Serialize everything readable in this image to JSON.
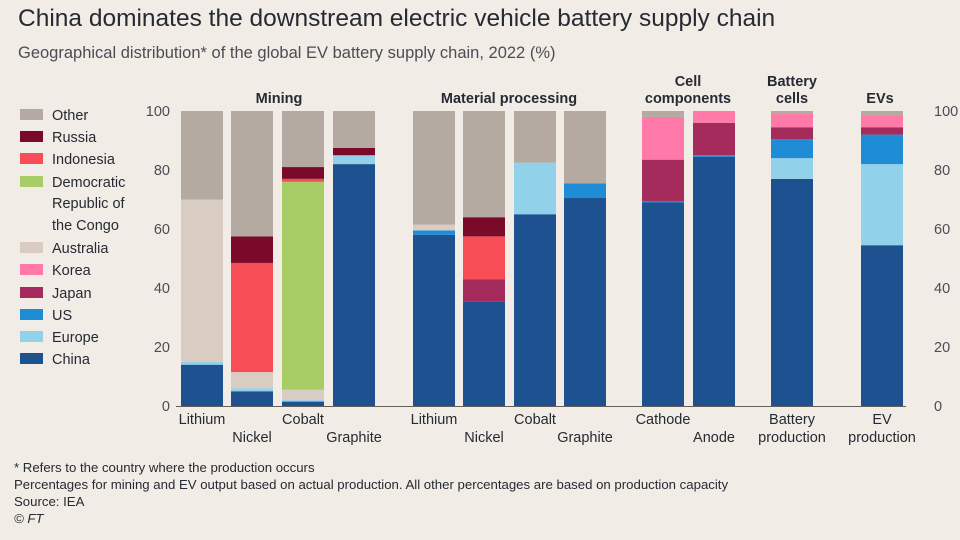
{
  "title": "China dominates the downstream electric vehicle battery supply chain",
  "subtitle": "Geographical distribution* of the global EV battery supply chain, 2022 (%)",
  "footnotes": [
    "* Refers to the country where the production occurs",
    "Percentages for mining and EV output based on actual production. All other percentages are based on production capacity",
    "Source: IEA"
  ],
  "credit": "© FT",
  "chart_data": {
    "type": "bar",
    "stacked": true,
    "ylim": [
      0,
      100
    ],
    "yticks": [
      0,
      20,
      40,
      60,
      80,
      100
    ],
    "grid": false,
    "legend_position": "left",
    "colors": {
      "China": "#1d5190",
      "Europe": "#91d1ea",
      "US": "#1f8dd6",
      "Japan": "#a52b5c",
      "Korea": "#ff7aa9",
      "Australia": "#d9ccc3",
      "Democratic Republic of the Congo": "#a8cc66",
      "Indonesia": "#f64d57",
      "Russia": "#7b0a2a",
      "Other": "#b4aaa1"
    },
    "legend": [
      {
        "key": "Other",
        "lines": [
          "Other"
        ]
      },
      {
        "key": "Russia",
        "lines": [
          "Russia"
        ]
      },
      {
        "key": "Indonesia",
        "lines": [
          "Indonesia"
        ]
      },
      {
        "key": "Democratic Republic of the Congo",
        "lines": [
          "Democratic",
          "Republic of",
          "the Congo"
        ]
      },
      {
        "key": "Australia",
        "lines": [
          "Australia"
        ]
      },
      {
        "key": "Korea",
        "lines": [
          "Korea"
        ]
      },
      {
        "key": "Japan",
        "lines": [
          "Japan"
        ]
      },
      {
        "key": "US",
        "lines": [
          "US"
        ]
      },
      {
        "key": "Europe",
        "lines": [
          "Europe"
        ]
      },
      {
        "key": "China",
        "lines": [
          "China"
        ]
      }
    ],
    "groups": [
      {
        "title": [
          "Mining"
        ],
        "categories": [
          {
            "label": [
              "Lithium"
            ],
            "segments": [
              [
                "China",
                14
              ],
              [
                "Europe",
                1
              ],
              [
                "Australia",
                55
              ],
              [
                "Other",
                30
              ]
            ]
          },
          {
            "label": [
              "Nickel"
            ],
            "segments": [
              [
                "China",
                5
              ],
              [
                "Europe",
                1
              ],
              [
                "Australia",
                5.5
              ],
              [
                "Indonesia",
                37
              ],
              [
                "Russia",
                9
              ],
              [
                "Other",
                42.5
              ]
            ]
          },
          {
            "label": [
              "Cobalt"
            ],
            "segments": [
              [
                "China",
                1.5
              ],
              [
                "Europe",
                0.5
              ],
              [
                "Australia",
                3.5
              ],
              [
                "Democratic Republic of the Congo",
                70.5
              ],
              [
                "Indonesia",
                1
              ],
              [
                "Russia",
                4
              ],
              [
                "Other",
                19
              ]
            ]
          },
          {
            "label": [
              "Graphite"
            ],
            "segments": [
              [
                "China",
                82
              ],
              [
                "Europe",
                3
              ],
              [
                "Russia",
                2.5
              ],
              [
                "Other",
                12.5
              ]
            ]
          }
        ]
      },
      {
        "title": [
          "Material processing"
        ],
        "categories": [
          {
            "label": [
              "Lithium"
            ],
            "segments": [
              [
                "China",
                58
              ],
              [
                "US",
                1.5
              ],
              [
                "Australia",
                2
              ],
              [
                "Other",
                38.5
              ]
            ]
          },
          {
            "label": [
              "Nickel"
            ],
            "segments": [
              [
                "China",
                35.5
              ],
              [
                "Japan",
                7.5
              ],
              [
                "Indonesia",
                14.5
              ],
              [
                "Russia",
                6.5
              ],
              [
                "Other",
                36
              ]
            ]
          },
          {
            "label": [
              "Cobalt"
            ],
            "segments": [
              [
                "China",
                65
              ],
              [
                "Europe",
                17.5
              ],
              [
                "Other",
                17.5
              ]
            ]
          },
          {
            "label": [
              "Graphite"
            ],
            "segments": [
              [
                "China",
                70.5
              ],
              [
                "US",
                5
              ],
              [
                "Other",
                24.5
              ]
            ]
          }
        ]
      },
      {
        "title": [
          "Cell",
          "components"
        ],
        "categories": [
          {
            "label": [
              "Cathode"
            ],
            "segments": [
              [
                "China",
                69
              ],
              [
                "US",
                0.5
              ],
              [
                "Japan",
                14
              ],
              [
                "Korea",
                14.5
              ],
              [
                "Other",
                2
              ]
            ]
          },
          {
            "label": [
              "Anode"
            ],
            "segments": [
              [
                "China",
                84.5
              ],
              [
                "US",
                0.5
              ],
              [
                "Japan",
                11
              ],
              [
                "Korea",
                4
              ]
            ]
          }
        ]
      },
      {
        "title": [
          "Battery",
          "cells"
        ],
        "categories": [
          {
            "label": [
              "Battery",
              "production"
            ],
            "segments": [
              [
                "China",
                77
              ],
              [
                "Europe",
                7
              ],
              [
                "US",
                6.5
              ],
              [
                "Japan",
                4
              ],
              [
                "Korea",
                4.5
              ],
              [
                "Other",
                1
              ]
            ]
          }
        ]
      },
      {
        "title": [
          "EVs"
        ],
        "categories": [
          {
            "label": [
              "EV",
              "production"
            ],
            "segments": [
              [
                "China",
                54.5
              ],
              [
                "Europe",
                27.5
              ],
              [
                "US",
                10
              ],
              [
                "Japan",
                2.5
              ],
              [
                "Korea",
                4
              ],
              [
                "Other",
                1.5
              ]
            ]
          }
        ]
      }
    ]
  }
}
